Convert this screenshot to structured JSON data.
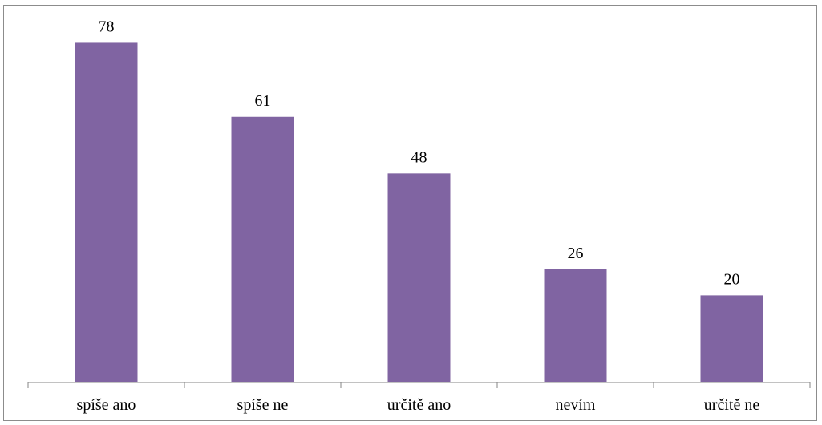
{
  "chart_data": {
    "type": "bar",
    "categories": [
      "spíše ano",
      "spíše ne",
      "určitě ano",
      "nevím",
      "určitě ne"
    ],
    "values": [
      78,
      61,
      48,
      26,
      20
    ],
    "data_labels": [
      "78",
      "61",
      "48",
      "26",
      "20"
    ],
    "title": "",
    "xlabel": "",
    "ylabel": "",
    "ylim": [
      0,
      86
    ],
    "grid": false,
    "legend": "none",
    "bar_color": "#8064a2",
    "axis_color": "#868686"
  }
}
